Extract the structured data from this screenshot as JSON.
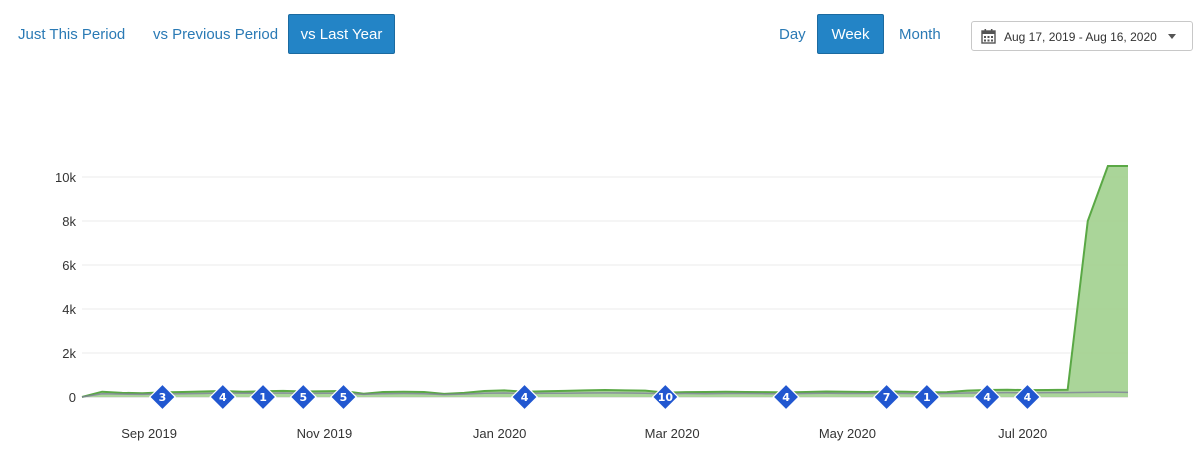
{
  "comparison": {
    "options": [
      "Just This Period",
      "vs Previous Period",
      "vs Last Year"
    ],
    "selected": "vs Last Year"
  },
  "granularity": {
    "options": [
      "Day",
      "Week",
      "Month"
    ],
    "selected": "Week"
  },
  "date_range": {
    "label": "Aug 17, 2019 - Aug 16, 2020",
    "icon": "calendar-icon"
  },
  "colors": {
    "accent": "#2384c6",
    "current_series": "#5aa845",
    "current_fill": "#a5d394",
    "previous_series": "#7f7f9a",
    "annotation": "#2157d0"
  },
  "chart_data": {
    "type": "area",
    "x_ticks": [
      "Sep 2019",
      "Nov 2019",
      "Jan 2020",
      "Mar 2020",
      "May 2020",
      "Jul 2020"
    ],
    "y_ticks": [
      "0",
      "2k",
      "4k",
      "6k",
      "8k",
      "10k"
    ],
    "ylim": [
      0,
      10500
    ],
    "grid": true,
    "legend": "none",
    "x": [
      "2019-08-17",
      "2019-08-24",
      "2019-08-31",
      "2019-09-07",
      "2019-09-14",
      "2019-09-21",
      "2019-09-28",
      "2019-10-05",
      "2019-10-12",
      "2019-10-19",
      "2019-10-26",
      "2019-11-02",
      "2019-11-09",
      "2019-11-16",
      "2019-11-23",
      "2019-11-30",
      "2019-12-07",
      "2019-12-14",
      "2019-12-21",
      "2019-12-28",
      "2020-01-04",
      "2020-01-11",
      "2020-01-18",
      "2020-01-25",
      "2020-02-01",
      "2020-02-08",
      "2020-02-15",
      "2020-02-22",
      "2020-02-29",
      "2020-03-07",
      "2020-03-14",
      "2020-03-21",
      "2020-03-28",
      "2020-04-04",
      "2020-04-11",
      "2020-04-18",
      "2020-04-25",
      "2020-05-02",
      "2020-05-09",
      "2020-05-16",
      "2020-05-23",
      "2020-05-30",
      "2020-06-06",
      "2020-06-13",
      "2020-06-20",
      "2020-06-27",
      "2020-07-04",
      "2020-07-11",
      "2020-07-18",
      "2020-07-25",
      "2020-08-01",
      "2020-08-08",
      "2020-08-15"
    ],
    "series": [
      {
        "values": [
          0,
          240,
          190,
          170,
          210,
          230,
          250,
          270,
          240,
          260,
          280,
          250,
          260,
          270,
          150,
          230,
          240,
          230,
          140,
          190,
          270,
          300,
          240,
          260,
          280,
          300,
          320,
          300,
          290,
          200,
          220,
          230,
          240,
          230,
          220,
          210,
          230,
          250,
          240,
          230,
          250,
          240,
          210,
          220,
          290,
          320,
          330,
          310,
          320,
          330,
          8000,
          10500,
          10500
        ]
      },
      {
        "values": [
          0,
          150,
          130,
          120,
          140,
          150,
          160,
          180,
          170,
          170,
          180,
          160,
          170,
          170,
          120,
          150,
          160,
          150,
          110,
          130,
          170,
          180,
          160,
          170,
          170,
          180,
          190,
          180,
          170,
          150,
          160,
          150,
          160,
          160,
          150,
          150,
          160,
          170,
          160,
          160,
          170,
          160,
          150,
          160,
          180,
          190,
          200,
          190,
          200,
          200,
          210,
          220,
          210
        ]
      }
    ],
    "annotations": [
      {
        "x": "2019-09-14",
        "label": "3"
      },
      {
        "x": "2019-10-05",
        "label": "4"
      },
      {
        "x": "2019-10-19",
        "label": "1"
      },
      {
        "x": "2019-11-02",
        "label": "5"
      },
      {
        "x": "2019-11-16",
        "label": "5"
      },
      {
        "x": "2020-01-18",
        "label": "4"
      },
      {
        "x": "2020-03-07",
        "label": "10"
      },
      {
        "x": "2020-04-18",
        "label": "4"
      },
      {
        "x": "2020-05-23",
        "label": "7"
      },
      {
        "x": "2020-06-06",
        "label": "1"
      },
      {
        "x": "2020-06-27",
        "label": "4"
      },
      {
        "x": "2020-07-11",
        "label": "4"
      }
    ]
  }
}
